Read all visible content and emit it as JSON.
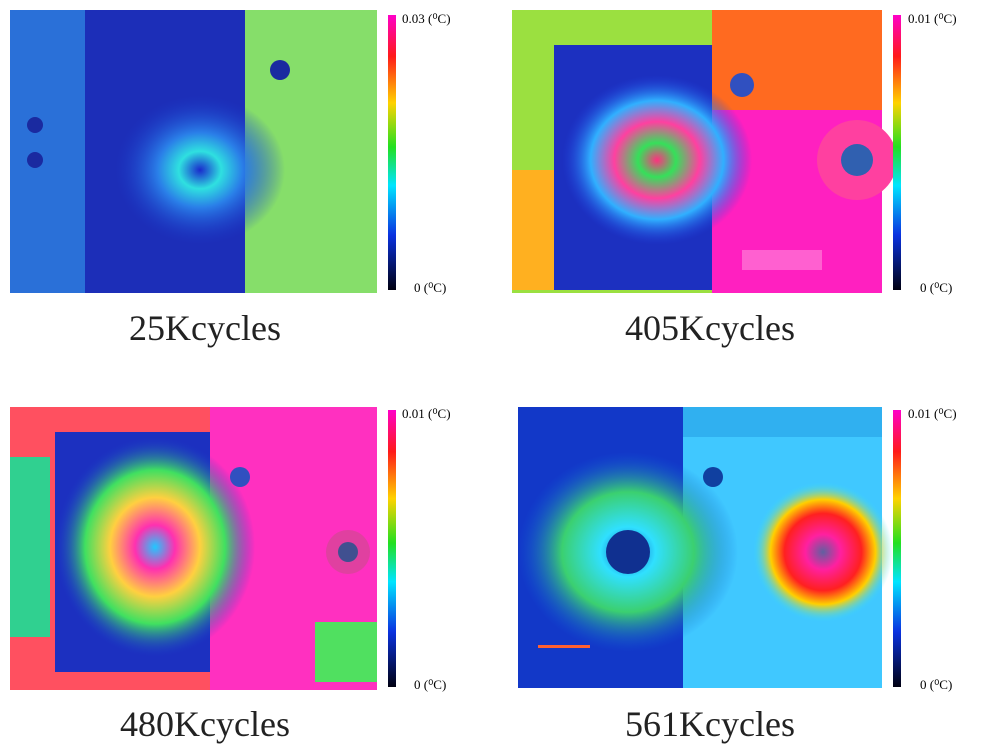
{
  "panels": [
    {
      "caption": "25Kcycles",
      "scale_max": "0.03 (⁰C)",
      "scale_min": "0 (⁰C)"
    },
    {
      "caption": "405Kcycles",
      "scale_max": "0.01 (⁰C)",
      "scale_min": "0 (⁰C)"
    },
    {
      "caption": "480Kcycles",
      "scale_max": "0.01 (⁰C)",
      "scale_min": "0 (⁰C)"
    },
    {
      "caption": "561Kcycles",
      "scale_max": "0.01 (⁰C)",
      "scale_min": "0 (⁰C)"
    }
  ]
}
